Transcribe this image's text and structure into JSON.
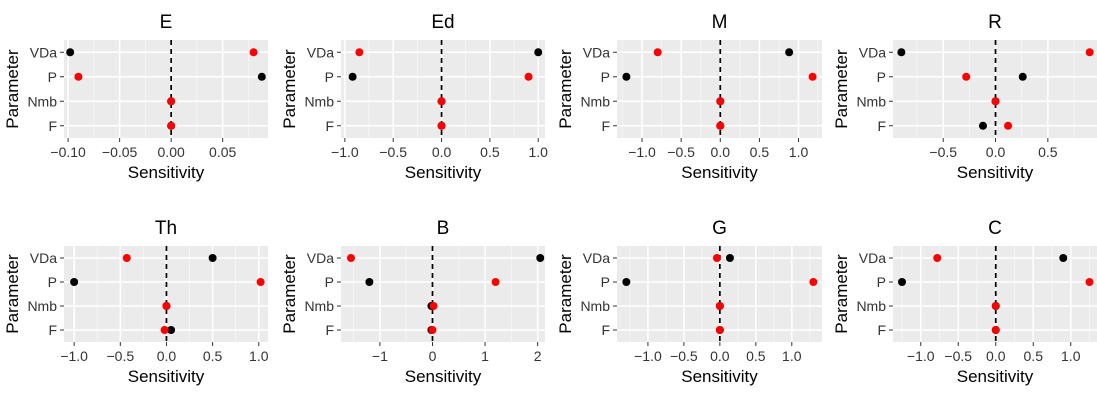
{
  "chart_data": [
    {
      "type": "scatter",
      "title": "E",
      "xlabel": "Sensitivity",
      "ylabel": "Parameter",
      "categories": [
        "VDa",
        "P",
        "Nmb",
        "F"
      ],
      "xlim": [
        -0.104,
        0.094
      ],
      "xticks": [
        -0.1,
        -0.05,
        0.0,
        0.05
      ],
      "xticklabels": [
        "−0.10",
        "−0.05",
        "0.00",
        "0.05"
      ],
      "series": [
        {
          "color": "#000000",
          "values": [
            -0.098,
            0.088,
            0.0,
            0.0
          ]
        },
        {
          "color": "#ff0000",
          "values": [
            0.08,
            -0.09,
            0.0,
            0.0
          ]
        }
      ],
      "vline": 0
    },
    {
      "type": "scatter",
      "title": "Ed",
      "xlabel": "Sensitivity",
      "ylabel": "Parameter",
      "categories": [
        "VDa",
        "P",
        "Nmb",
        "F"
      ],
      "xlim": [
        -1.04,
        1.07
      ],
      "xticks": [
        -1.0,
        -0.5,
        0.0,
        0.5,
        1.0
      ],
      "xticklabels": [
        "−1.0",
        "−0.5",
        "0.0",
        "0.5",
        "1.0"
      ],
      "series": [
        {
          "color": "#000000",
          "values": [
            1.0,
            -0.92,
            0.0,
            0.0
          ]
        },
        {
          "color": "#ff0000",
          "values": [
            -0.85,
            0.9,
            0.0,
            0.0
          ]
        }
      ],
      "vline": 0
    },
    {
      "type": "scatter",
      "title": "M",
      "xlabel": "Sensitivity",
      "ylabel": "Parameter",
      "categories": [
        "VDa",
        "P",
        "Nmb",
        "F"
      ],
      "xlim": [
        -1.32,
        1.3
      ],
      "xticks": [
        -1.0,
        -0.5,
        0.0,
        0.5,
        1.0
      ],
      "xticklabels": [
        "−1.0",
        "−0.5",
        "0.0",
        "0.5",
        "1.0"
      ],
      "series": [
        {
          "color": "#000000",
          "values": [
            0.88,
            -1.2,
            0.0,
            0.0
          ]
        },
        {
          "color": "#ff0000",
          "values": [
            -0.8,
            1.18,
            0.0,
            0.0
          ]
        }
      ],
      "vline": 0
    },
    {
      "type": "scatter",
      "title": "R",
      "xlabel": "Sensitivity",
      "ylabel": "Parameter",
      "categories": [
        "VDa",
        "P",
        "Nmb",
        "F"
      ],
      "xlim": [
        -0.98,
        0.97
      ],
      "xticks": [
        -0.5,
        0.0,
        0.5
      ],
      "xticklabels": [
        "−0.5",
        "0.0",
        "0.5"
      ],
      "series": [
        {
          "color": "#000000",
          "values": [
            -0.9,
            0.26,
            0.0,
            -0.12
          ]
        },
        {
          "color": "#ff0000",
          "values": [
            0.9,
            -0.28,
            0.0,
            0.12
          ]
        }
      ],
      "vline": 0
    },
    {
      "type": "scatter",
      "title": "Th",
      "xlabel": "Sensitivity",
      "ylabel": "Parameter",
      "categories": [
        "VDa",
        "P",
        "Nmb",
        "F"
      ],
      "xlim": [
        -1.11,
        1.1
      ],
      "xticks": [
        -1.0,
        -0.5,
        0.0,
        0.5,
        1.0
      ],
      "xticklabels": [
        "−1.0",
        "−0.5",
        "0.0",
        "0.5",
        "1.0"
      ],
      "series": [
        {
          "color": "#000000",
          "values": [
            0.5,
            -1.0,
            0.0,
            0.05
          ]
        },
        {
          "color": "#ff0000",
          "values": [
            -0.43,
            1.02,
            0.0,
            -0.02
          ]
        }
      ],
      "vline": 0
    },
    {
      "type": "scatter",
      "title": "B",
      "xlabel": "Sensitivity",
      "ylabel": "Parameter",
      "categories": [
        "VDa",
        "P",
        "Nmb",
        "F"
      ],
      "xlim": [
        -1.74,
        2.14
      ],
      "xticks": [
        -1,
        0,
        1,
        2
      ],
      "xticklabels": [
        "−1",
        "0",
        "1",
        "2"
      ],
      "series": [
        {
          "color": "#000000",
          "values": [
            2.05,
            -1.2,
            -0.02,
            -0.02
          ]
        },
        {
          "color": "#ff0000",
          "values": [
            -1.55,
            1.2,
            0.02,
            0.0
          ]
        }
      ],
      "vline": 0
    },
    {
      "type": "scatter",
      "title": "G",
      "xlabel": "Sensitivity",
      "ylabel": "Parameter",
      "categories": [
        "VDa",
        "P",
        "Nmb",
        "F"
      ],
      "xlim": [
        -1.43,
        1.42
      ],
      "xticks": [
        -1.0,
        -0.5,
        0.0,
        0.5,
        1.0
      ],
      "xticklabels": [
        "−1.0",
        "−0.5",
        "0.0",
        "0.5",
        "1.0"
      ],
      "series": [
        {
          "color": "#000000",
          "values": [
            0.14,
            -1.3,
            0.0,
            0.0
          ]
        },
        {
          "color": "#ff0000",
          "values": [
            -0.04,
            1.3,
            0.0,
            0.0
          ]
        }
      ],
      "vline": 0
    },
    {
      "type": "scatter",
      "title": "C",
      "xlabel": "Sensitivity",
      "ylabel": "Parameter",
      "categories": [
        "VDa",
        "P",
        "Nmb",
        "F"
      ],
      "xlim": [
        -1.37,
        1.35
      ],
      "xticks": [
        -1.0,
        -0.5,
        0.0,
        0.5,
        1.0
      ],
      "xticklabels": [
        "−1.0",
        "−0.5",
        "0.0",
        "0.5",
        "1.0"
      ],
      "series": [
        {
          "color": "#000000",
          "values": [
            0.9,
            -1.25,
            0.0,
            0.0
          ]
        },
        {
          "color": "#ff0000",
          "values": [
            -0.78,
            1.25,
            0.0,
            0.0
          ]
        }
      ],
      "vline": 0
    }
  ]
}
